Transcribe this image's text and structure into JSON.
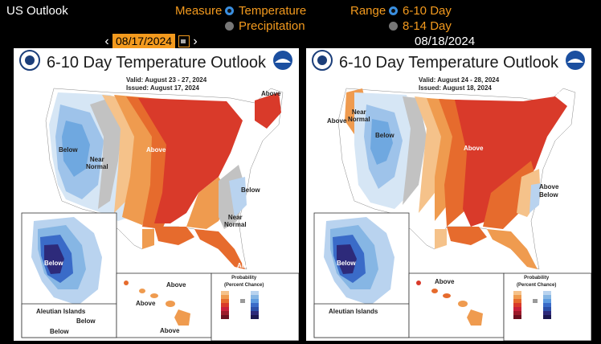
{
  "app": {
    "title": "US Outlook"
  },
  "measure": {
    "label": "Measure",
    "options": [
      {
        "label": "Temperature",
        "selected": true
      },
      {
        "label": "Precipitation",
        "selected": false
      }
    ]
  },
  "range": {
    "label": "Range",
    "options": [
      {
        "label": "6-10 Day",
        "selected": true
      },
      {
        "label": "8-14 Day",
        "selected": false
      }
    ]
  },
  "date_nav": {
    "prev": "‹",
    "value": "08/17/2024",
    "next": "›"
  },
  "second_date": "08/18/2024",
  "panels": [
    {
      "title": "6-10 Day Temperature Outlook",
      "valid": "Valid:   August 23 - 27, 2024",
      "issued": "Issued:  August 17, 2024",
      "labels": {
        "above_ne": "Above",
        "below_w": "Below",
        "near_normal_w": "Near\nNormal",
        "above_c": "Above",
        "below_e": "Below",
        "near_normal_e": "Near\nNormal",
        "above_s": "Above",
        "below_ak": "Below",
        "above_hi1": "Above",
        "above_hi2": "Above",
        "above_hi3": "Above",
        "aleutian": "Aleutian Islands",
        "below_al": "Below",
        "below_al2": "Below"
      }
    },
    {
      "title": "6-10 Day Temperature Outlook",
      "valid": "Valid:   August 24 - 28, 2024",
      "issued": "Issued:  August 18, 2024",
      "labels": {
        "above_ne": "Above",
        "above_nw": "Above",
        "near_normal_w": "Near\nNormal",
        "below_w": "Below",
        "above_c": "Above",
        "above_e": "Above",
        "below_e": "Below",
        "below_ak": "Below",
        "above_hi1": "Above",
        "aleutian": "Aleutian Islands"
      }
    }
  ],
  "legend": {
    "title": "Probability\n(Percent Chance)",
    "cols": [
      "Above Normal",
      "Below Normal"
    ],
    "rows_left": [
      "33-40%",
      "40-50%",
      "50-60%",
      "60-70%",
      "70-80%",
      "80-90%",
      "90-100%"
    ],
    "rows_right": [
      "33-40%",
      "40-50%",
      "50-60%",
      "60-70%",
      "70-80%",
      "80-90%",
      "90-100%"
    ],
    "side_left": [
      "Leaning\nAbove",
      "Likely\nAbove"
    ],
    "side_right": [
      "Leaning\nBelow",
      "Likely\nBelow"
    ],
    "near_normal": "Near\nNormal"
  },
  "colors": {
    "accent": "#f39a1e",
    "radio_on": "#3a8fe0",
    "above_1": "#f5c28a",
    "above_2": "#ef9b4f",
    "above_3": "#e66b2d",
    "above_4": "#d93a2a",
    "above_5": "#c8203a",
    "below_1": "#b9d3ef",
    "below_2": "#86b6e4",
    "below_3": "#5e9be0",
    "below_4": "#3a6bc8",
    "below_5": "#2d2a7a",
    "near": "#9a9a9a"
  }
}
